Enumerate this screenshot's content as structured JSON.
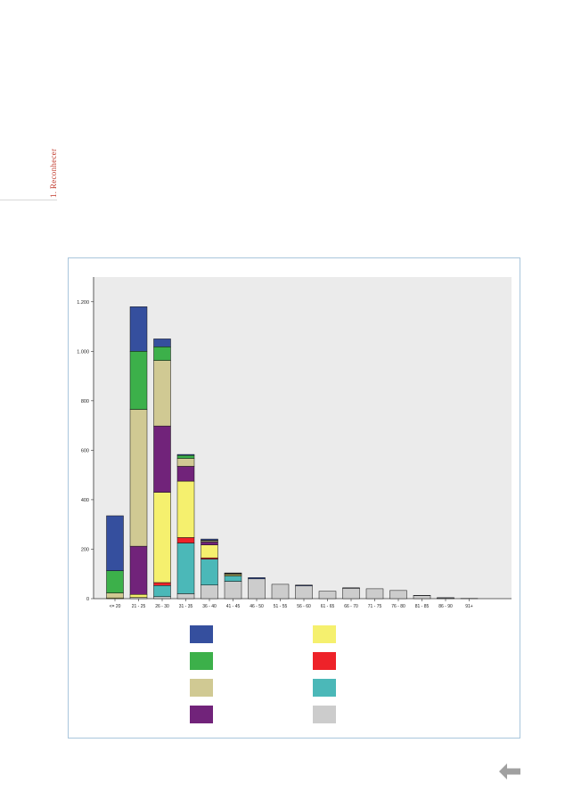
{
  "page": {
    "side_label": "1. Reconhecer"
  },
  "chart_data": {
    "type": "bar",
    "stacked": true,
    "categories": [
      "<= 20",
      "21 - 25",
      "26 - 30",
      "31 - 35",
      "36 - 40",
      "41 - 45",
      "46 - 50",
      "51 - 55",
      "56 - 60",
      "61 - 65",
      "66 - 70",
      "71 - 75",
      "76 - 80",
      "81 - 85",
      "86 - 90",
      "91+"
    ],
    "ylim": [
      0,
      1300
    ],
    "yticks": [
      0,
      200,
      400,
      600,
      800,
      1000,
      1200
    ],
    "ytick_labels": [
      "0",
      "200",
      "400",
      "600",
      "800",
      "1.000",
      "1.200"
    ],
    "grid": false,
    "plot_background": "#ebebeb",
    "series": [
      {
        "color": "#cccccc",
        "values": [
          0,
          5,
          8,
          20,
          55,
          70,
          80,
          58,
          52,
          30,
          42,
          40,
          33,
          12,
          3,
          1
        ]
      },
      {
        "color": "#4bb8b8",
        "values": [
          0,
          0,
          45,
          205,
          105,
          22,
          0,
          0,
          0,
          0,
          0,
          0,
          0,
          0,
          0,
          0
        ]
      },
      {
        "color": "#ee2229",
        "values": [
          0,
          0,
          12,
          22,
          5,
          0,
          0,
          0,
          0,
          0,
          0,
          0,
          0,
          0,
          0,
          0
        ]
      },
      {
        "color": "#f5f06e",
        "values": [
          3,
          12,
          365,
          228,
          52,
          5,
          0,
          0,
          0,
          0,
          0,
          0,
          0,
          0,
          0,
          0
        ]
      },
      {
        "color": "#71237a",
        "values": [
          0,
          195,
          268,
          60,
          12,
          0,
          0,
          0,
          0,
          0,
          0,
          0,
          0,
          0,
          0,
          0
        ]
      },
      {
        "color": "#d0c993",
        "values": [
          20,
          553,
          265,
          32,
          5,
          3,
          0,
          0,
          0,
          0,
          0,
          0,
          0,
          0,
          0,
          0
        ]
      },
      {
        "color": "#3cb04a",
        "values": [
          90,
          235,
          55,
          12,
          2,
          2,
          0,
          0,
          0,
          0,
          0,
          0,
          0,
          0,
          0,
          0
        ]
      },
      {
        "color": "#354f9e",
        "values": [
          222,
          180,
          32,
          4,
          5,
          2,
          5,
          0,
          3,
          0,
          2,
          0,
          0,
          1,
          1,
          0
        ]
      }
    ],
    "legend": {
      "placement": "bottom",
      "swatch_colors": [
        "#354f9e",
        "#3cb04a",
        "#d0c993",
        "#71237a",
        "#f5f06e",
        "#ee2229",
        "#4bb8b8",
        "#cccccc"
      ]
    }
  },
  "icons": {
    "back": "left-arrow-icon"
  }
}
